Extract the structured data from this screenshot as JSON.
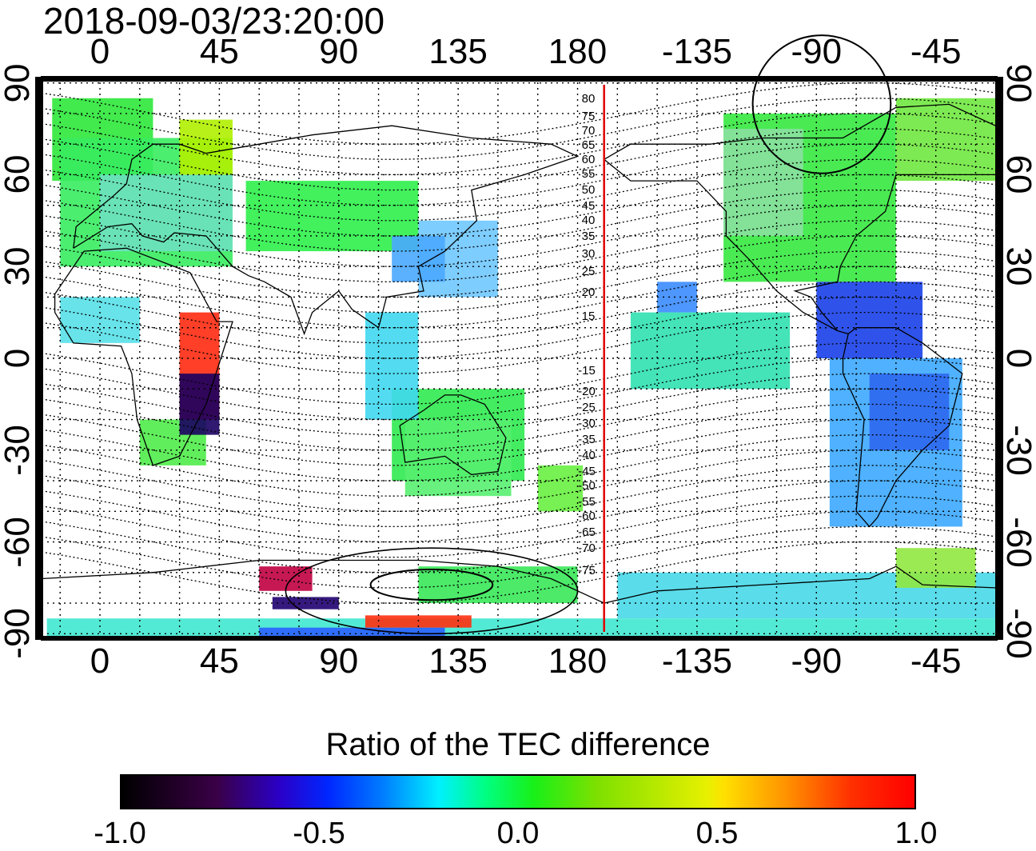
{
  "timestamp": "2018-09-03/23:20:00",
  "map": {
    "x_ticks": [
      {
        "lon": 0,
        "label": "0"
      },
      {
        "lon": 45,
        "label": "45"
      },
      {
        "lon": 90,
        "label": "90"
      },
      {
        "lon": 135,
        "label": "135"
      },
      {
        "lon": 180,
        "label": "180"
      },
      {
        "lon": 225,
        "label": "-135"
      },
      {
        "lon": 270,
        "label": "-90"
      },
      {
        "lon": 315,
        "label": "-45"
      }
    ],
    "y_ticks": [
      {
        "lat": 90,
        "label": "90"
      },
      {
        "lat": 60,
        "label": "60"
      },
      {
        "lat": 30,
        "label": "30"
      },
      {
        "lat": 0,
        "label": "0"
      },
      {
        "lat": -30,
        "label": "-30"
      },
      {
        "lat": -60,
        "label": "-60"
      },
      {
        "lat": -90,
        "label": "-90"
      }
    ],
    "lon_range": [
      -22,
      338
    ],
    "lat_range": [
      -92,
      92
    ],
    "grid_lon_step": 15,
    "grid_lat_step": 10,
    "meridian_marker_lon": 190,
    "meridian_marker_color": "#e00000",
    "magnetic_labels_north": [
      "80",
      "75",
      "70",
      "65",
      "60",
      "55",
      "50",
      "45",
      "40",
      "35",
      "30",
      "25",
      "20",
      "15"
    ],
    "magnetic_labels_south": [
      "-15",
      "-20",
      "-25",
      "-30",
      "-35",
      "-40",
      "-45",
      "-50",
      "-55",
      "-60",
      "-65",
      "-70",
      "-75"
    ],
    "regions": [
      {
        "lon": [
          -18,
          20
        ],
        "lat": [
          58,
          85
        ],
        "color": "#2ee83a"
      },
      {
        "lon": [
          -15,
          50
        ],
        "lat": [
          30,
          72
        ],
        "color": "#38ec60"
      },
      {
        "lon": [
          0,
          50
        ],
        "lat": [
          35,
          60
        ],
        "color": "#6ee0c0"
      },
      {
        "lon": [
          30,
          50
        ],
        "lat": [
          60,
          78
        ],
        "color": "#b0f000"
      },
      {
        "lon": [
          55,
          120
        ],
        "lat": [
          35,
          58
        ],
        "color": "#2ef04a"
      },
      {
        "lon": [
          120,
          150
        ],
        "lat": [
          20,
          45
        ],
        "color": "#70c8ff"
      },
      {
        "lon": [
          110,
          130
        ],
        "lat": [
          25,
          40
        ],
        "color": "#4aa8ff"
      },
      {
        "lon": [
          110,
          160
        ],
        "lat": [
          -40,
          -10
        ],
        "color": "#30ea50"
      },
      {
        "lon": [
          115,
          155
        ],
        "lat": [
          -45,
          -20
        ],
        "color": "#58f070"
      },
      {
        "lon": [
          165,
          182
        ],
        "lat": [
          -50,
          -35
        ],
        "color": "#68f040"
      },
      {
        "lon": [
          15,
          40
        ],
        "lat": [
          -35,
          -20
        ],
        "color": "#50ec4a"
      },
      {
        "lon": [
          30,
          45
        ],
        "lat": [
          -20,
          15
        ],
        "color": "#ff2a10"
      },
      {
        "lon": [
          30,
          45
        ],
        "lat": [
          -25,
          -5
        ],
        "color": "#1a0060"
      },
      {
        "lon": [
          -15,
          15
        ],
        "lat": [
          5,
          20
        ],
        "color": "#58e0e8"
      },
      {
        "lon": [
          100,
          120
        ],
        "lat": [
          -20,
          15
        ],
        "color": "#40d8f0"
      },
      {
        "lon": [
          235,
          300
        ],
        "lat": [
          25,
          80
        ],
        "color": "#36e840"
      },
      {
        "lon": [
          235,
          265
        ],
        "lat": [
          40,
          75
        ],
        "color": "#8ae0a0"
      },
      {
        "lon": [
          300,
          338
        ],
        "lat": [
          58,
          85
        ],
        "color": "#70e840"
      },
      {
        "lon": [
          270,
          310
        ],
        "lat": [
          0,
          25
        ],
        "color": "#1840e8"
      },
      {
        "lon": [
          275,
          325
        ],
        "lat": [
          -55,
          0
        ],
        "color": "#3ca8ff"
      },
      {
        "lon": [
          290,
          320
        ],
        "lat": [
          -30,
          -5
        ],
        "color": "#2e68f0"
      },
      {
        "lon": [
          210,
          225
        ],
        "lat": [
          15,
          25
        ],
        "color": "#3a8cff"
      },
      {
        "lon": [
          200,
          260
        ],
        "lat": [
          -10,
          15
        ],
        "color": "#30e0b0"
      },
      {
        "lon": [
          195,
          338
        ],
        "lat": [
          -85,
          -70
        ],
        "color": "#48d8e8"
      },
      {
        "lon": [
          300,
          330
        ],
        "lat": [
          -75,
          -62
        ],
        "color": "#90e840"
      },
      {
        "lon": [
          -20,
          338
        ],
        "lat": [
          -92,
          -85
        ],
        "color": "#40e8d0"
      },
      {
        "lon": [
          60,
          130
        ],
        "lat": [
          -92,
          -88
        ],
        "color": "#2a60ff"
      },
      {
        "lon": [
          100,
          140
        ],
        "lat": [
          -88,
          -84
        ],
        "color": "#ff3010"
      },
      {
        "lon": [
          120,
          180
        ],
        "lat": [
          -80,
          -68
        ],
        "color": "#38e858"
      },
      {
        "lon": [
          60,
          80
        ],
        "lat": [
          -76,
          -68
        ],
        "color": "#c00040"
      },
      {
        "lon": [
          65,
          90
        ],
        "lat": [
          -82,
          -78
        ],
        "color": "#200070"
      }
    ]
  },
  "colorbar": {
    "title": "Ratio of the TEC difference",
    "tick_labels": [
      "-1.0",
      "-0.5",
      "0.0",
      "0.5",
      "1.0"
    ]
  }
}
